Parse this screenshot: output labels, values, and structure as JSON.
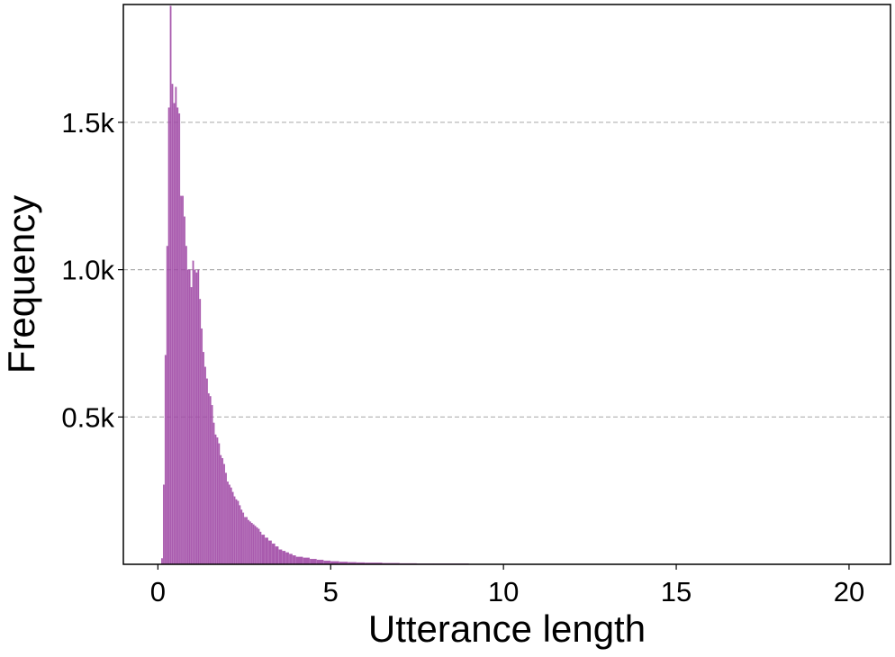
{
  "chart_data": {
    "type": "bar",
    "title": "",
    "xlabel": "Utterance length",
    "ylabel": "Frequency",
    "xlim": [
      -1.0,
      21.2
    ],
    "ylim": [
      0,
      1900
    ],
    "grid": "horizontal dashed",
    "xticks": [
      0,
      5,
      10,
      15,
      20
    ],
    "xtick_labels": [
      "0",
      "5",
      "10",
      "15",
      "20"
    ],
    "yticks": [
      500,
      1000,
      1500
    ],
    "ytick_labels": [
      "0.5k",
      "1.0k",
      "1.5k"
    ],
    "bar_color": "#a04aa6",
    "bin_width": 0.05,
    "x": [
      0.1,
      0.15,
      0.2,
      0.25,
      0.3,
      0.35,
      0.4,
      0.45,
      0.5,
      0.55,
      0.6,
      0.65,
      0.7,
      0.75,
      0.8,
      0.85,
      0.9,
      0.95,
      1.0,
      1.05,
      1.1,
      1.15,
      1.2,
      1.25,
      1.3,
      1.35,
      1.4,
      1.45,
      1.5,
      1.55,
      1.6,
      1.65,
      1.7,
      1.75,
      1.8,
      1.85,
      1.9,
      1.95,
      2.0,
      2.05,
      2.1,
      2.15,
      2.2,
      2.25,
      2.3,
      2.35,
      2.4,
      2.45,
      2.5,
      2.55,
      2.6,
      2.65,
      2.7,
      2.75,
      2.8,
      2.85,
      2.9,
      2.95,
      3.0,
      3.1,
      3.2,
      3.3,
      3.4,
      3.5,
      3.6,
      3.7,
      3.8,
      3.9,
      4.0,
      4.2,
      4.4,
      4.6,
      4.8,
      5.0,
      5.25,
      5.5,
      5.75,
      6.0,
      6.5,
      7.0,
      7.5,
      8.0,
      9.0,
      10.0
    ],
    "values": [
      20,
      270,
      710,
      1080,
      1550,
      1895,
      1630,
      1565,
      1620,
      1550,
      1530,
      1250,
      1250,
      1180,
      1080,
      1000,
      1000,
      940,
      1030,
      1000,
      990,
      1000,
      900,
      800,
      720,
      670,
      630,
      580,
      570,
      540,
      480,
      440,
      430,
      410,
      370,
      360,
      340,
      310,
      280,
      270,
      260,
      245,
      230,
      220,
      215,
      200,
      185,
      175,
      160,
      160,
      150,
      145,
      140,
      135,
      130,
      125,
      120,
      110,
      100,
      90,
      80,
      70,
      60,
      50,
      45,
      40,
      35,
      30,
      25,
      22,
      18,
      15,
      12,
      10,
      8,
      7,
      6,
      5,
      4,
      3,
      2,
      2,
      1,
      1
    ]
  }
}
